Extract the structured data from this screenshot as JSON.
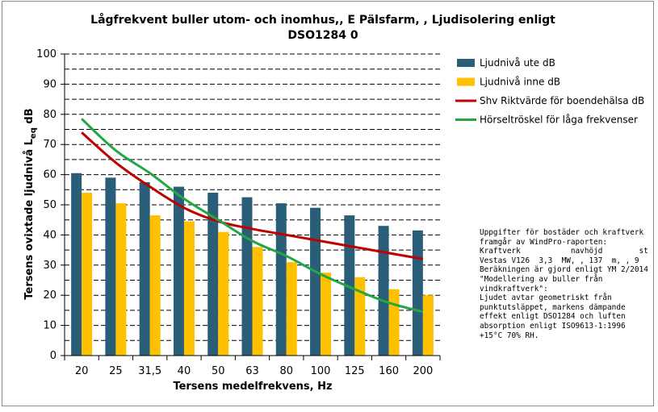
{
  "chart_data": {
    "type": "bar",
    "title_lines": [
      "Lågfrekvent buller utom- och inomhus,, E Pälsfarm, , Ljudisolering enligt",
      "DSO1284 0"
    ],
    "xlabel": "Tersens medelfrekvens, Hz",
    "ylabel_parts": [
      "Tersens ovixtade ljudnivå L",
      "eq",
      " dB"
    ],
    "ylim": [
      0,
      100
    ],
    "yticks": [
      "0",
      "10",
      "20",
      "30",
      "40",
      "50",
      "60",
      "70",
      "80",
      "90",
      "100"
    ],
    "grid": "dashed horizontal",
    "legend_position": "right",
    "categories": [
      "20",
      "25",
      "31,5",
      "40",
      "50",
      "63",
      "80",
      "100",
      "125",
      "160",
      "200"
    ],
    "series": [
      {
        "name": "Ljudnivå ute dB",
        "kind": "bar",
        "color": "#2a5d78",
        "values": [
          60.5,
          59,
          57.5,
          56,
          54,
          52.5,
          50.5,
          49,
          46.5,
          43,
          41.5
        ]
      },
      {
        "name": "Ljudnivå inne dB",
        "kind": "bar",
        "color": "#ffc000",
        "values": [
          54,
          50.5,
          46.5,
          44.5,
          41,
          36,
          31,
          27.5,
          26,
          22,
          20
        ]
      },
      {
        "name": "Shv Riktvärde för boendehälsa dB",
        "kind": "line",
        "color": "#c00000",
        "values": [
          74,
          64,
          56,
          49,
          44.5,
          42,
          40,
          38,
          36,
          34,
          32
        ]
      },
      {
        "name": "Hörseltröskel för låga frekvenser",
        "kind": "line",
        "color": "#22a744",
        "values": [
          78.5,
          68,
          60.5,
          52,
          45,
          38,
          33,
          27,
          22,
          17.5,
          14.5
        ]
      }
    ]
  },
  "note_lines": [
    "Uppgifter för bostäder och kraftverk",
    "framgår av WindPro-raporten:",
    "Kraftverk           navhöjd        st",
    "Vestas V126  3,3  MW, , 137  m, , 9",
    "Beräkningen är gjord enligt YM 2/2014",
    "\"Modellering av buller från",
    "vindkraftverk\":",
    "Ljudet avtar geometriskt från",
    "punktutsläppet, markens dämpande",
    "effekt enligt DSO1284 och luften",
    "absorption enligt ISO9613-1:1996",
    "+15°C 70% RH."
  ]
}
